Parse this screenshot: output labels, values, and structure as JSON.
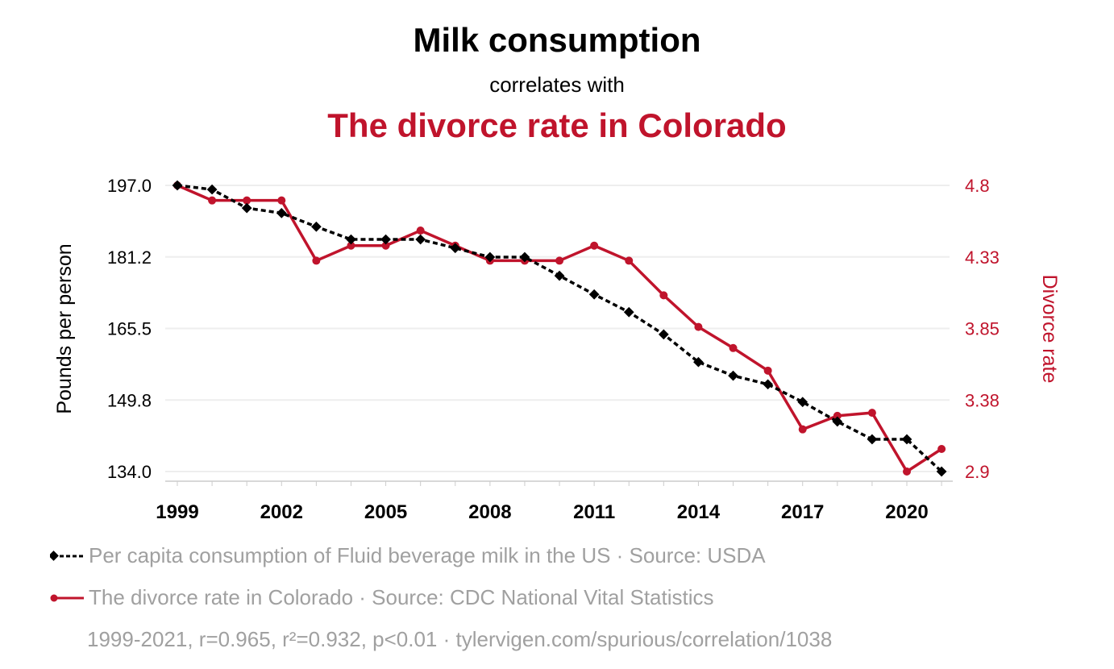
{
  "title": "Milk consumption",
  "subtitle": "correlates with",
  "title2": "The divorce rate in Colorado",
  "legend": {
    "series1": "Per capita consumption of Fluid beverage milk in the US · Source: USDA",
    "series2": "The divorce rate in Colorado · Source: CDC National Vital Statistics",
    "footer": "1999-2021, r=0.965, r²=0.932, p<0.01 · tylervigen.com/spurious/correlation/1038"
  },
  "colors": {
    "milk": "#000000",
    "divorce": "#c0142c"
  },
  "chart_data": {
    "type": "line",
    "title": "Milk consumption correlates with The divorce rate in Colorado",
    "x": [
      1999,
      2000,
      2001,
      2002,
      2003,
      2004,
      2005,
      2006,
      2007,
      2008,
      2009,
      2010,
      2011,
      2012,
      2013,
      2014,
      2015,
      2016,
      2017,
      2018,
      2019,
      2020,
      2021
    ],
    "xticks": [
      "1999",
      "2002",
      "2005",
      "2008",
      "2011",
      "2014",
      "2017",
      "2020"
    ],
    "ylabel": "Pounds per person",
    "y2label": "Divorce rate",
    "ylim": [
      134.0,
      197.0
    ],
    "y2lim": [
      2.9,
      4.8
    ],
    "yticks": [
      "197.0",
      "181.2",
      "165.5",
      "149.8",
      "134.0"
    ],
    "y2ticks": [
      "4.8",
      "4.33",
      "3.85",
      "3.38",
      "2.9"
    ],
    "series": [
      {
        "name": "Per capita consumption of Fluid beverage milk in the US",
        "axis": "left",
        "values": [
          197.0,
          196.1,
          192.0,
          190.9,
          187.9,
          185.1,
          185.1,
          185.1,
          183.2,
          181.2,
          181.2,
          177.1,
          173.0,
          169.1,
          164.2,
          158.1,
          155.1,
          153.2,
          149.3,
          145.0,
          141.1,
          141.1,
          134.0
        ]
      },
      {
        "name": "The divorce rate in Colorado",
        "axis": "right",
        "values": [
          4.8,
          4.7,
          4.7,
          4.7,
          4.3,
          4.4,
          4.4,
          4.5,
          4.4,
          4.3,
          4.3,
          4.3,
          4.4,
          4.3,
          4.07,
          3.86,
          3.72,
          3.57,
          3.18,
          3.27,
          3.29,
          2.9,
          3.05
        ]
      }
    ]
  }
}
